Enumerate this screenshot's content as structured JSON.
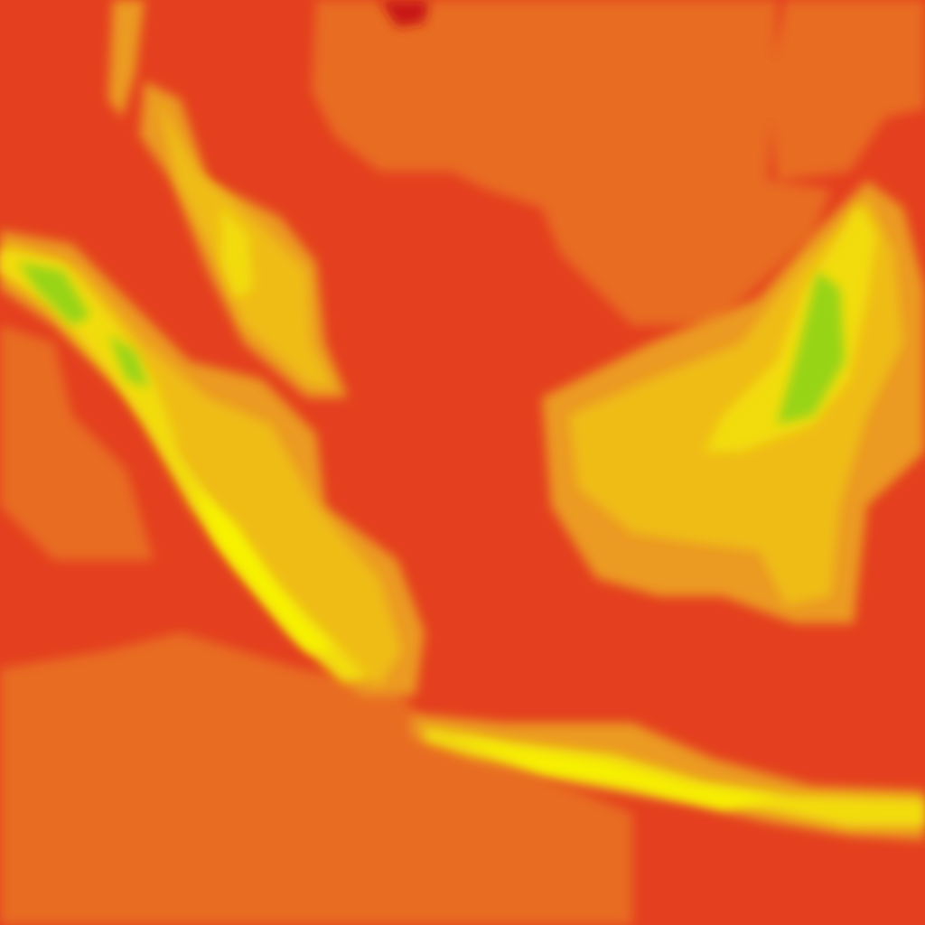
{
  "map": {
    "palette": {
      "background": "#e4401f",
      "dark_red": "#c81818",
      "orange": "#e86c22",
      "amber": "#eb9a22",
      "yellow_orange": "#efbc18",
      "yellow": "#f2dc08",
      "bright_yellow": "#f7f200",
      "green": "#98d414"
    }
  }
}
